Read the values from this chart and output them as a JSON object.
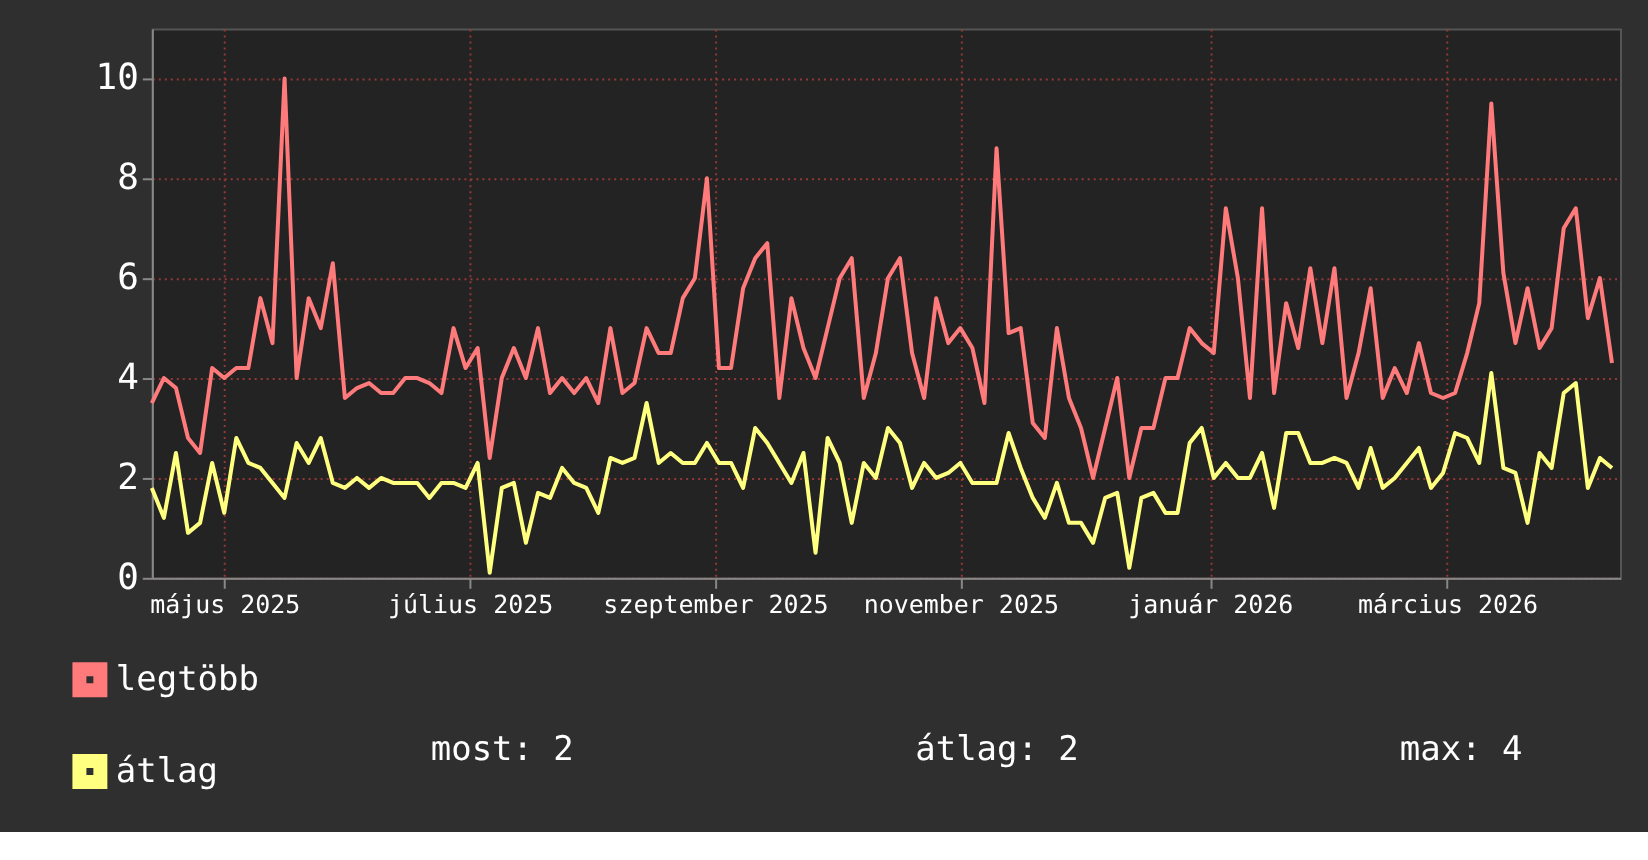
{
  "chart_data": {
    "type": "line",
    "x": [
      "2025-04-28",
      "2025-05-01",
      "2025-05-04",
      "2025-05-07",
      "2025-05-10",
      "2025-05-13",
      "2025-05-16",
      "2025-05-19",
      "2025-05-22",
      "2025-05-25",
      "2025-05-28",
      "2025-05-31",
      "2025-06-03",
      "2025-06-06",
      "2025-06-09",
      "2025-06-12",
      "2025-06-15",
      "2025-06-18",
      "2025-06-21",
      "2025-06-24",
      "2025-06-27",
      "2025-06-30",
      "2025-07-03",
      "2025-07-06",
      "2025-07-09",
      "2025-07-12",
      "2025-07-15",
      "2025-07-18",
      "2025-07-21",
      "2025-07-24",
      "2025-07-27",
      "2025-07-30",
      "2025-08-02",
      "2025-08-05",
      "2025-08-08",
      "2025-08-11",
      "2025-08-14",
      "2025-08-17",
      "2025-08-20",
      "2025-08-23",
      "2025-08-26",
      "2025-08-29",
      "2025-09-01",
      "2025-09-04",
      "2025-09-07",
      "2025-09-10",
      "2025-09-13",
      "2025-09-16",
      "2025-09-19",
      "2025-09-22",
      "2025-09-25",
      "2025-09-28",
      "2025-10-01",
      "2025-10-04",
      "2025-10-07",
      "2025-10-10",
      "2025-10-13",
      "2025-10-16",
      "2025-10-19",
      "2025-10-22",
      "2025-10-25",
      "2025-10-28",
      "2025-10-31",
      "2025-11-03",
      "2025-11-06",
      "2025-11-09",
      "2025-11-12",
      "2025-11-15",
      "2025-11-18",
      "2025-11-21",
      "2025-11-24",
      "2025-11-27",
      "2025-11-30",
      "2025-12-03",
      "2025-12-06",
      "2025-12-09",
      "2025-12-12",
      "2025-12-15",
      "2025-12-18",
      "2025-12-21",
      "2025-12-24",
      "2025-12-27",
      "2025-12-30",
      "2026-01-02",
      "2026-01-05",
      "2026-01-08",
      "2026-01-11",
      "2026-01-14",
      "2026-01-17",
      "2026-01-20",
      "2026-01-23",
      "2026-01-26",
      "2026-01-29",
      "2026-02-01",
      "2026-02-04",
      "2026-02-07",
      "2026-02-10",
      "2026-02-13",
      "2026-02-16",
      "2026-02-19",
      "2026-02-22",
      "2026-02-25",
      "2026-02-28",
      "2026-03-03",
      "2026-03-06",
      "2026-03-09",
      "2026-03-12",
      "2026-03-15",
      "2026-03-18",
      "2026-03-21",
      "2026-03-24",
      "2026-03-27",
      "2026-03-30",
      "2026-04-02",
      "2026-04-05",
      "2026-04-08",
      "2026-04-11",
      "2026-04-14",
      "2026-04-17",
      "2026-04-20",
      "2026-04-23",
      "2026-04-26"
    ],
    "series": [
      {
        "name": "legtöbb",
        "color": "#ff7b7b",
        "values": [
          3.5,
          4.0,
          3.8,
          2.8,
          2.5,
          4.2,
          4.0,
          4.2,
          4.2,
          5.6,
          4.7,
          10.0,
          4.0,
          5.6,
          5.0,
          6.3,
          3.6,
          3.8,
          3.9,
          3.7,
          3.7,
          4.0,
          4.0,
          3.9,
          3.7,
          5.0,
          4.2,
          4.6,
          2.4,
          4.0,
          4.6,
          4.0,
          5.0,
          3.7,
          4.0,
          3.7,
          4.0,
          3.5,
          5.0,
          3.7,
          3.9,
          5.0,
          4.5,
          4.5,
          5.6,
          6.0,
          8.0,
          4.2,
          4.2,
          5.8,
          6.4,
          6.7,
          3.6,
          5.6,
          4.6,
          4.0,
          5.0,
          6.0,
          6.4,
          3.6,
          4.5,
          6.0,
          6.4,
          4.5,
          3.6,
          5.6,
          4.7,
          5.0,
          4.6,
          3.5,
          8.6,
          4.9,
          5.0,
          3.1,
          2.8,
          5.0,
          3.6,
          3.0,
          2.0,
          3.0,
          4.0,
          2.0,
          3.0,
          3.0,
          4.0,
          4.0,
          5.0,
          4.7,
          4.5,
          7.4,
          6.0,
          3.6,
          7.4,
          3.7,
          5.5,
          4.6,
          6.2,
          4.7,
          6.2,
          3.6,
          4.5,
          5.8,
          3.6,
          4.2,
          3.7,
          4.7,
          3.7,
          3.6,
          3.7,
          4.5,
          5.5,
          9.5,
          6.1,
          4.7,
          5.8,
          4.6,
          5.0,
          7.0,
          7.4,
          5.2,
          6.0,
          4.3
        ]
      },
      {
        "name": "átlag",
        "color": "#ffff80",
        "values": [
          1.8,
          1.2,
          2.5,
          0.9,
          1.1,
          2.3,
          1.3,
          2.8,
          2.3,
          2.2,
          1.9,
          1.6,
          2.7,
          2.3,
          2.8,
          1.9,
          1.8,
          2.0,
          1.8,
          2.0,
          1.9,
          1.9,
          1.9,
          1.6,
          1.9,
          1.9,
          1.8,
          2.3,
          0.1,
          1.8,
          1.9,
          0.7,
          1.7,
          1.6,
          2.2,
          1.9,
          1.8,
          1.3,
          2.4,
          2.3,
          2.4,
          3.5,
          2.3,
          2.5,
          2.3,
          2.3,
          2.7,
          2.3,
          2.3,
          1.8,
          3.0,
          2.7,
          2.3,
          1.9,
          2.5,
          0.5,
          2.8,
          2.3,
          1.1,
          2.3,
          2.0,
          3.0,
          2.7,
          1.8,
          2.3,
          2.0,
          2.1,
          2.3,
          1.9,
          1.9,
          1.9,
          2.9,
          2.2,
          1.6,
          1.2,
          1.9,
          1.1,
          1.1,
          0.7,
          1.6,
          1.7,
          0.2,
          1.6,
          1.7,
          1.3,
          1.3,
          2.7,
          3.0,
          2.0,
          2.3,
          2.0,
          2.0,
          2.5,
          1.4,
          2.9,
          2.9,
          2.3,
          2.3,
          2.4,
          2.3,
          1.8,
          2.6,
          1.8,
          2.0,
          2.3,
          2.6,
          1.8,
          2.1,
          2.9,
          2.8,
          2.3,
          4.1,
          2.2,
          2.1,
          1.1,
          2.5,
          2.2,
          3.7,
          3.9,
          1.8,
          2.4,
          2.2
        ]
      }
    ],
    "xlim": [
      "2025-04-28",
      "2026-04-28"
    ],
    "xticks": [
      {
        "value": "2025-05-16",
        "label": "május 2025"
      },
      {
        "value": "2025-07-16",
        "label": "július 2025"
      },
      {
        "value": "2025-09-15",
        "label": "szeptember 2025"
      },
      {
        "value": "2025-11-15",
        "label": "november 2025"
      },
      {
        "value": "2026-01-16",
        "label": "január 2026"
      },
      {
        "value": "2026-03-16",
        "label": "március 2026"
      }
    ],
    "ylim": [
      0,
      11
    ],
    "yticks": [
      0,
      2,
      4,
      6,
      8,
      10
    ],
    "grid": true,
    "legend": "bottom left",
    "annotations": [
      "most: 2",
      "átlag: 2",
      "max: 4"
    ]
  }
}
